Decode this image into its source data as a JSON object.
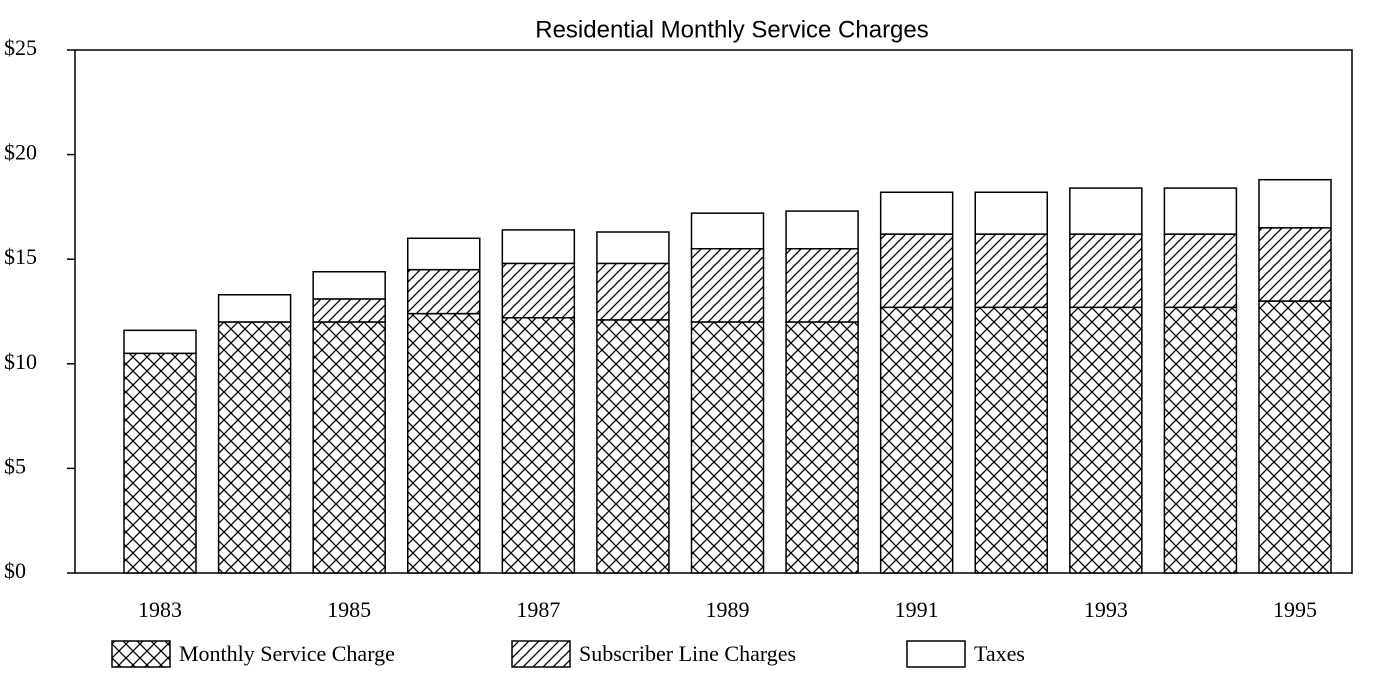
{
  "chart_data": {
    "type": "stacked_bar",
    "title": "Residential Monthly Service Charges",
    "categories": [
      "1983",
      null,
      "1985",
      null,
      "1987",
      null,
      "1989",
      null,
      "1991",
      null,
      "1993",
      null,
      "1995"
    ],
    "series": [
      {
        "name": "Monthly Service Charge",
        "color": "#000000",
        "pattern": "crosshatch",
        "values": [
          10.5,
          12.0,
          12.0,
          12.4,
          12.2,
          12.1,
          12.0,
          12.0,
          12.7,
          12.7,
          12.7,
          12.7,
          13.0
        ]
      },
      {
        "name": "Subscriber Line Charges",
        "color": "#000000",
        "pattern": "diagonal",
        "values": [
          0,
          0,
          1.1,
          2.1,
          2.6,
          2.7,
          3.5,
          3.5,
          3.5,
          3.5,
          3.5,
          3.5,
          3.5
        ]
      },
      {
        "name": "Taxes",
        "color": "#000000",
        "pattern": "none",
        "values": [
          1.1,
          1.3,
          1.3,
          1.5,
          1.6,
          1.5,
          1.7,
          1.8,
          2.0,
          2.0,
          2.2,
          2.2,
          2.3
        ]
      }
    ],
    "ylim": [
      0,
      25
    ],
    "yticks": [
      {
        "value": 0,
        "label": "$0"
      },
      {
        "value": 5,
        "label": "$5"
      },
      {
        "value": 10,
        "label": "$10"
      },
      {
        "value": 15,
        "label": "$15"
      },
      {
        "value": 20,
        "label": "$20"
      },
      {
        "value": 25,
        "label": "$25"
      }
    ],
    "grid": false,
    "legend": "bottom"
  }
}
